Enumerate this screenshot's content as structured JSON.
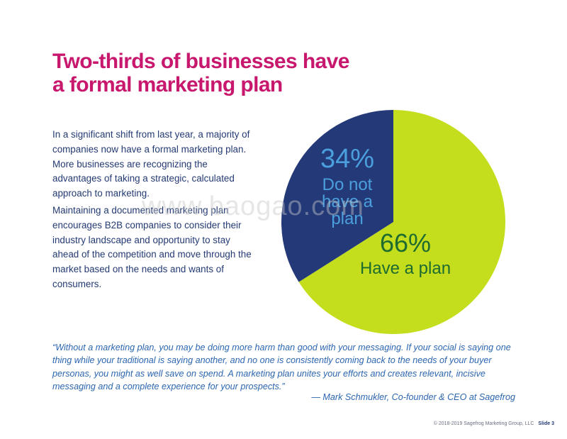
{
  "title": "Two-thirds of businesses have a formal marketing plan",
  "paragraphs": [
    "In a significant shift from last year, a majority of companies now have a formal marketing plan. More businesses are recognizing the advantages of taking a strategic, calculated approach to marketing.",
    "Maintaining a documented marketing plan encourages B2B companies to consider their industry landscape and opportunity to stay ahead of the competition and move through the market based on the needs and wants of consumers."
  ],
  "chart_data": {
    "type": "pie",
    "slices": [
      {
        "label": "Have a plan",
        "value": 66,
        "value_label": "66%",
        "color": "#c4de1e",
        "text_color": "#1e6b2f"
      },
      {
        "label": "Do not have a plan",
        "value": 34,
        "value_label": "34%",
        "color": "#243a78",
        "text_color": "#4a9fdc",
        "label_lines": [
          "Do not",
          "have a",
          "plan"
        ]
      }
    ],
    "legend": "none"
  },
  "quote": "“Without a marketing plan, you may be doing more harm than good with your messaging. If your social is saying one thing while your traditional is saying another, and no one is consistently coming back to the needs of your buyer personas, you might as well save on spend. A marketing plan unites your efforts and creates relevant, incisive messaging and a complete experience for your prospects.”",
  "attribution": "— Mark Schmukler, Co-founder & CEO at Sagefrog",
  "footer": {
    "copyright": "© 2018-2019 Sagefrog Marketing Group, LLC",
    "slide": "Slide 3"
  },
  "watermark": "www.baogao.com",
  "colors": {
    "title": "#c8186e",
    "body": "#243a73",
    "quote": "#2c66b0"
  }
}
